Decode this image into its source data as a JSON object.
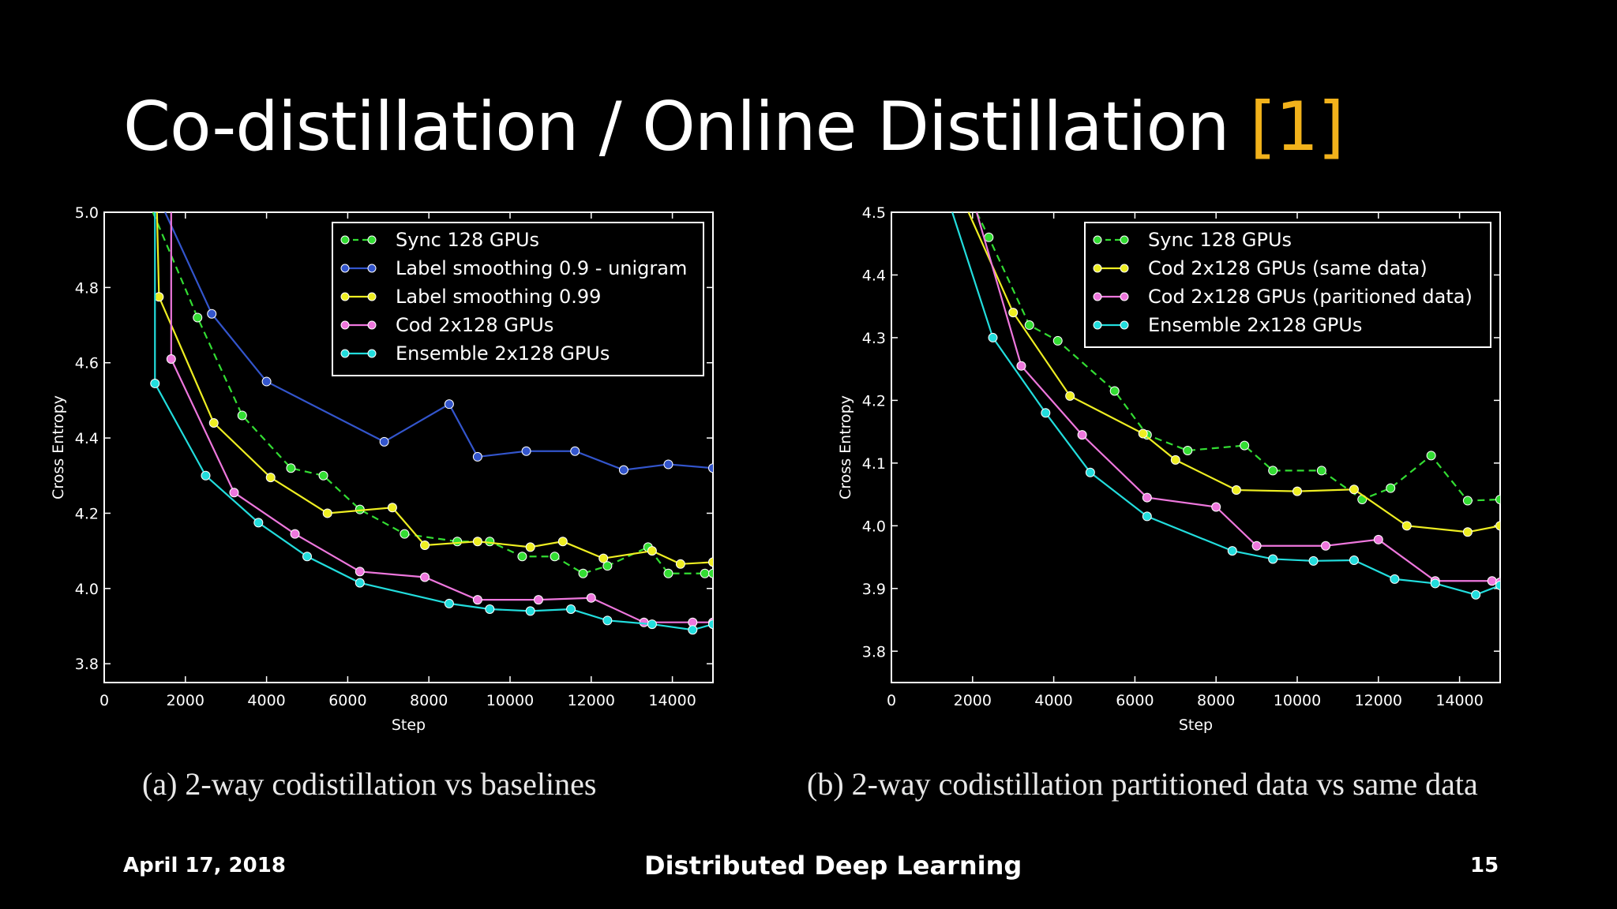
{
  "slide": {
    "title": "Co-distillation / Online Distillation",
    "title_ref": "[1]",
    "footer_date": "April 17, 2018",
    "footer_center": "Distributed Deep Learning",
    "page_number": "15"
  },
  "colors": {
    "accent": "#f2b21b",
    "background": "#000000"
  },
  "chart_data": [
    {
      "type": "line",
      "caption": "(a) 2-way codistillation vs baselines",
      "xlabel": "Step",
      "ylabel": "Cross Entropy",
      "xlim": [
        0,
        15000
      ],
      "ylim": [
        3.75,
        5.0
      ],
      "xticks": [
        0,
        2000,
        4000,
        6000,
        8000,
        10000,
        12000,
        14000
      ],
      "yticks": [
        3.8,
        4.0,
        4.2,
        4.4,
        4.6,
        4.8,
        5.0
      ],
      "grid": false,
      "legend_position": "top-right",
      "series": [
        {
          "name": "Sync 128 GPUs",
          "color": "#33dd33",
          "dashed": true,
          "x": [
            1200,
            2300,
            3400,
            4600,
            5400,
            6300,
            7400,
            8700,
            9500,
            10300,
            11100,
            11800,
            12400,
            13400,
            13900,
            14800,
            15000
          ],
          "y": [
            5.0,
            4.72,
            4.46,
            4.32,
            4.3,
            4.21,
            4.145,
            4.125,
            4.125,
            4.085,
            4.085,
            4.04,
            4.06,
            4.11,
            4.04,
            4.04,
            4.04
          ]
        },
        {
          "name": "Label smoothing 0.9 - unigram",
          "color": "#3355cc",
          "dashed": false,
          "x": [
            1500,
            2650,
            4000,
            6900,
            8500,
            9200,
            10400,
            11600,
            12800,
            13900,
            15000
          ],
          "y": [
            5.0,
            4.73,
            4.55,
            4.39,
            4.49,
            4.35,
            4.365,
            4.365,
            4.315,
            4.33,
            4.32
          ]
        },
        {
          "name": "Label smoothing 0.99",
          "color": "#eeee22",
          "dashed": false,
          "x": [
            1300,
            1350,
            2700,
            4100,
            5500,
            7100,
            7900,
            9200,
            10500,
            11300,
            12300,
            13500,
            14200,
            15000
          ],
          "y": [
            5.0,
            4.775,
            4.44,
            4.295,
            4.2,
            4.215,
            4.115,
            4.125,
            4.11,
            4.125,
            4.08,
            4.1,
            4.065,
            4.07
          ]
        },
        {
          "name": "Cod 2x128 GPUs",
          "color": "#ee77dd",
          "dashed": false,
          "x": [
            1650,
            1650,
            3200,
            4700,
            6300,
            7900,
            9200,
            10700,
            12000,
            13300,
            14500,
            15000
          ],
          "y": [
            5.0,
            4.61,
            4.255,
            4.145,
            4.045,
            4.03,
            3.97,
            3.97,
            3.975,
            3.91,
            3.91,
            3.91
          ]
        },
        {
          "name": "Ensemble 2x128 GPUs",
          "color": "#22dddd",
          "dashed": false,
          "x": [
            1250,
            1250,
            2500,
            3800,
            5000,
            6300,
            8500,
            9500,
            10500,
            11500,
            12400,
            13500,
            14500,
            15000
          ],
          "y": [
            5.0,
            4.545,
            4.3,
            4.175,
            4.085,
            4.015,
            3.96,
            3.945,
            3.94,
            3.945,
            3.915,
            3.905,
            3.89,
            3.905
          ]
        }
      ]
    },
    {
      "type": "line",
      "caption": "(b) 2-way codistillation partitioned data vs same data",
      "xlabel": "Step",
      "ylabel": "Cross Entropy",
      "xlim": [
        0,
        15000
      ],
      "ylim": [
        3.75,
        4.5
      ],
      "xticks": [
        0,
        2000,
        4000,
        6000,
        8000,
        10000,
        12000,
        14000
      ],
      "yticks": [
        3.8,
        3.9,
        4.0,
        4.1,
        4.2,
        4.3,
        4.4,
        4.5
      ],
      "grid": false,
      "legend_position": "top-right",
      "series": [
        {
          "name": "Sync 128 GPUs",
          "color": "#33dd33",
          "dashed": true,
          "x": [
            2100,
            2400,
            3400,
            4100,
            5500,
            6300,
            7300,
            8700,
            9400,
            10600,
            11600,
            12300,
            13300,
            14200,
            15000
          ],
          "y": [
            4.5,
            4.46,
            4.32,
            4.295,
            4.215,
            4.145,
            4.12,
            4.128,
            4.088,
            4.088,
            4.042,
            4.06,
            4.112,
            4.04,
            4.042
          ]
        },
        {
          "name": "Cod 2x128 GPUs (same data)",
          "color": "#eeee22",
          "dashed": false,
          "x": [
            1900,
            3000,
            4400,
            6200,
            7000,
            8500,
            10000,
            11400,
            12700,
            14200,
            15000
          ],
          "y": [
            4.5,
            4.34,
            4.207,
            4.147,
            4.105,
            4.057,
            4.055,
            4.058,
            4.0,
            3.99,
            4.0
          ]
        },
        {
          "name": "Cod 2x128 GPUs (paritioned data)",
          "color": "#ee77dd",
          "dashed": false,
          "x": [
            2100,
            3200,
            4700,
            6300,
            8000,
            9000,
            10700,
            12000,
            13400,
            14800,
            15000
          ],
          "y": [
            4.5,
            4.255,
            4.145,
            4.045,
            4.03,
            3.968,
            3.968,
            3.978,
            3.912,
            3.912,
            3.91
          ]
        },
        {
          "name": "Ensemble 2x128 GPUs",
          "color": "#22dddd",
          "dashed": false,
          "x": [
            1500,
            2500,
            3800,
            4900,
            6300,
            8400,
            9400,
            10400,
            11400,
            12400,
            13400,
            14400,
            15000
          ],
          "y": [
            4.5,
            4.3,
            4.18,
            4.085,
            4.015,
            3.96,
            3.947,
            3.944,
            3.945,
            3.915,
            3.908,
            3.89,
            3.905
          ]
        }
      ]
    }
  ]
}
